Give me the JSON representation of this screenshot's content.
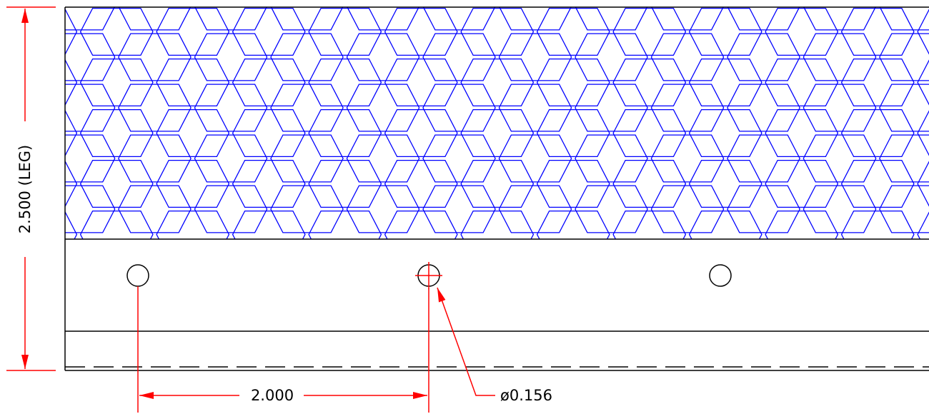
{
  "dimensions": {
    "leg_height": "2.500 (LEG)",
    "hole_spacing": "2.000",
    "hole_diameter": "ø0.156"
  },
  "colors": {
    "outline": "#000000",
    "dimension": "#ff0000",
    "mesh": "#0000ff",
    "background": "#ffffff"
  }
}
